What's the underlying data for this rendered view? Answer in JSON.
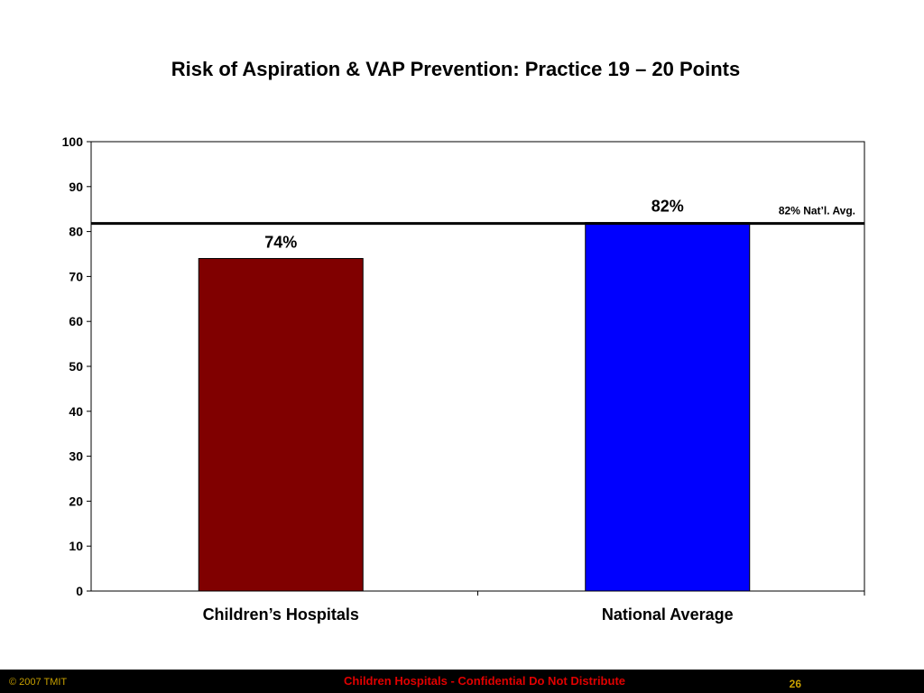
{
  "chart_data": {
    "type": "bar",
    "title": "Risk of Aspiration & VAP Prevention: Practice 19 – 20 Points",
    "categories": [
      "Children’s Hospitals",
      "National Average"
    ],
    "values": [
      74,
      82
    ],
    "data_labels": [
      "74%",
      "82%"
    ],
    "colors": [
      "#800000",
      "#0000ff"
    ],
    "ylim": [
      0,
      100
    ],
    "yticks": [
      0,
      10,
      20,
      30,
      40,
      50,
      60,
      70,
      80,
      90,
      100
    ],
    "reference_line": {
      "value": 82,
      "label": "82% Nat’l. Avg."
    },
    "xlabel": "",
    "ylabel": "",
    "grid": false
  },
  "footer": {
    "copyright": "© 2007 TMIT",
    "notice": "Children Hospitals - Confidential Do Not Distribute",
    "page_number": "26"
  }
}
